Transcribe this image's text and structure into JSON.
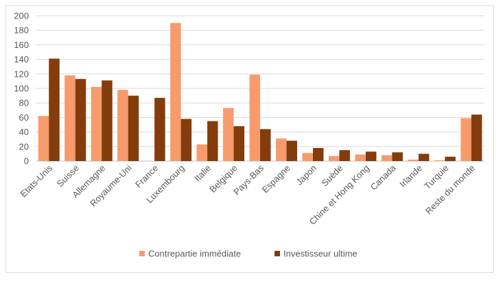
{
  "chart_data": {
    "type": "bar",
    "title": "",
    "xlabel": "",
    "ylabel": "",
    "ylim": [
      0,
      200
    ],
    "yticks": [
      0,
      20,
      40,
      60,
      80,
      100,
      120,
      140,
      160,
      180,
      200
    ],
    "grid": true,
    "legend_position": "bottom",
    "categories": [
      "Etats-Unis",
      "Suisse",
      "Allemagne",
      "Royaume-Uni",
      "France",
      "Luxembourg",
      "Italie",
      "Belgique",
      "Pays-Bas",
      "Espagne",
      "Japon",
      "Suède",
      "Chine et Hong Kong",
      "Canada",
      "Irlande",
      "Turquie",
      "Reste du monde"
    ],
    "series": [
      {
        "name": "Contrepartie immédiate",
        "color": "#f79b6c",
        "values": [
          62,
          118,
          102,
          98,
          0,
          190,
          23,
          73,
          119,
          31,
          11,
          7,
          9,
          8,
          2,
          1,
          59
        ]
      },
      {
        "name": "Investisseur ultime",
        "color": "#843c0c",
        "values": [
          141,
          113,
          111,
          90,
          87,
          58,
          55,
          48,
          44,
          28,
          18,
          15,
          13,
          12,
          10,
          6,
          64
        ]
      }
    ]
  }
}
